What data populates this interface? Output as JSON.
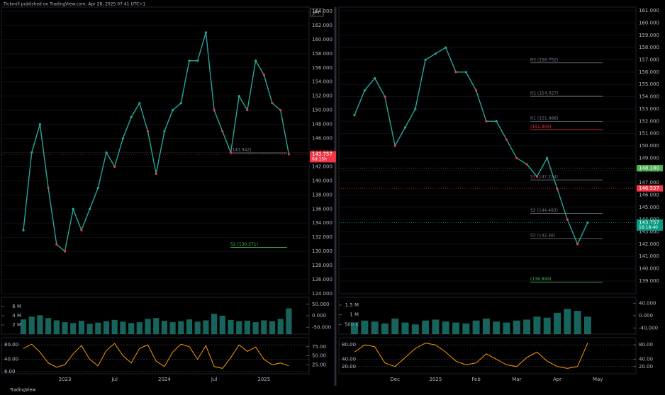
{
  "header": {
    "text": "Tickmill published on TradingView.com, Apr 28, 2025 07:41 UTC+1"
  },
  "footer": {
    "text": "TradingView"
  },
  "chart_data": [
    {
      "type": "line",
      "currency": "JPY",
      "categories": [
        null,
        null,
        null,
        null,
        null,
        "2023",
        null,
        null,
        null,
        null,
        null,
        "Jul",
        null,
        null,
        null,
        null,
        null,
        "2024",
        null,
        null,
        null,
        null,
        null,
        "Jul",
        null,
        null,
        null,
        null,
        null,
        "2025",
        null,
        null,
        null
      ],
      "values": [
        133,
        144,
        148,
        139,
        131,
        130,
        136,
        133,
        136,
        139,
        144,
        142,
        146,
        149,
        151,
        147,
        141,
        147,
        150,
        151,
        157,
        157,
        161,
        150,
        147,
        144,
        152,
        150,
        157,
        155,
        151,
        150,
        143.757
      ],
      "color": "#26a69a",
      "ylim": [
        124,
        164.6
      ],
      "yticks": [
        {
          "value": 164,
          "label": "164.000"
        },
        {
          "value": 162,
          "label": "162.000"
        },
        {
          "value": 160,
          "label": "160.000"
        },
        {
          "value": 158,
          "label": "158.000"
        },
        {
          "value": 156,
          "label": "156.000"
        },
        {
          "value": 154,
          "label": "154.000"
        },
        {
          "value": 152,
          "label": "152.000"
        },
        {
          "value": 150,
          "label": "150.000"
        },
        {
          "value": 148,
          "label": "148.000"
        },
        {
          "value": 146,
          "label": "146.000"
        },
        {
          "value": 144,
          "label": "144.000"
        },
        {
          "value": 142,
          "label": "142.000"
        },
        {
          "value": 140,
          "label": "140.000"
        },
        {
          "value": 138,
          "label": "138.000"
        },
        {
          "value": 136,
          "label": "136.000"
        },
        {
          "value": 134,
          "label": "134.000"
        },
        {
          "value": 132,
          "label": "132.000"
        },
        {
          "value": 130,
          "label": "130.000"
        },
        {
          "value": 128,
          "label": "128.000"
        },
        {
          "value": 126,
          "label": "126.000"
        },
        {
          "value": 124,
          "label": "124.000"
        }
      ],
      "price_tags": [
        {
          "value": 143.757,
          "label": "143.757",
          "color": "#f23645",
          "countdown": "6d 15h"
        }
      ],
      "levels": [
        {
          "value": 143.942,
          "label": "(143.942)",
          "color": "#787b86"
        },
        {
          "value": 130.571,
          "label": "S2 (130.571)",
          "color": "#4caf50"
        }
      ],
      "volume": {
        "values": [
          3200000,
          3800000,
          4100000,
          3500000,
          3000000,
          2600000,
          2400000,
          2900000,
          2200000,
          2500000,
          2800000,
          3100000,
          2700000,
          2400000,
          2600000,
          3300000,
          3500000,
          2900000,
          2600000,
          2800000,
          3200000,
          2700000,
          3000000,
          4400000,
          4000000,
          3100000,
          2800000,
          2900000,
          2600000,
          3000000,
          2800000,
          3300000,
          5600000
        ],
        "color": "#26a69a",
        "ylim": [
          0,
          8000000
        ],
        "yticks": [
          {
            "value": 6000000,
            "label": "6 M"
          },
          {
            "value": 4000000,
            "label": "4 M"
          },
          {
            "value": 2000000,
            "label": "2 M"
          }
        ],
        "y2lim": [
          -80,
          80
        ],
        "y2ticks": [
          {
            "value": 50,
            "label": "50.000"
          },
          {
            "value": 0,
            "label": "0.000"
          },
          {
            "value": -50,
            "label": "-50.000"
          }
        ]
      },
      "oscillator": {
        "values": [
          70,
          82,
          60,
          30,
          18,
          25,
          55,
          78,
          40,
          22,
          65,
          84,
          50,
          30,
          70,
          80,
          35,
          20,
          60,
          82,
          75,
          40,
          78,
          20,
          15,
          45,
          80,
          62,
          74,
          40,
          25,
          30,
          22
        ],
        "color": "#ff9800",
        "ylim": [
          0,
          100
        ],
        "yticks": [
          {
            "value": 80,
            "label": "80.00"
          },
          {
            "value": 40,
            "label": "40.00"
          },
          {
            "value": 6,
            "label": "6.00"
          }
        ],
        "y2ticks": [
          {
            "value": 75,
            "label": "75.00"
          },
          {
            "value": 50,
            "label": "50.00"
          },
          {
            "value": 25,
            "label": "25.00"
          }
        ]
      }
    },
    {
      "type": "line",
      "categories": [
        null,
        null,
        null,
        null,
        "Dec",
        null,
        null,
        null,
        "2025",
        null,
        null,
        null,
        "Feb",
        null,
        null,
        null,
        "Mar",
        null,
        null,
        null,
        "Apr",
        null,
        null,
        null,
        "May"
      ],
      "values": [
        152.5,
        154.5,
        155.5,
        154,
        150,
        151.5,
        153,
        157,
        157.5,
        158,
        156,
        156,
        154.5,
        152,
        152,
        150.5,
        149,
        148.5,
        147.5,
        149,
        146.5,
        144,
        142,
        143.757,
        null
      ],
      "color": "#26a69a",
      "ylim": [
        137.96,
        161.29
      ],
      "yticks": [
        {
          "value": 161,
          "label": "161.000"
        },
        {
          "value": 160,
          "label": "160.000"
        },
        {
          "value": 159,
          "label": "159.000"
        },
        {
          "value": 158,
          "label": "158.000"
        },
        {
          "value": 157,
          "label": "157.000"
        },
        {
          "value": 156,
          "label": "156.000"
        },
        {
          "value": 155,
          "label": "155.000"
        },
        {
          "value": 154,
          "label": "154.000"
        },
        {
          "value": 153,
          "label": "153.000"
        },
        {
          "value": 152,
          "label": "152.000"
        },
        {
          "value": 151,
          "label": "151.000"
        },
        {
          "value": 150,
          "label": "150.000"
        },
        {
          "value": 149,
          "label": "149.000"
        },
        {
          "value": 148,
          "label": "148.000"
        },
        {
          "value": 147,
          "label": "147.000"
        },
        {
          "value": 146,
          "label": "146.000"
        },
        {
          "value": 145,
          "label": "145.000"
        },
        {
          "value": 144,
          "label": "144.000"
        },
        {
          "value": 143,
          "label": "143.000"
        },
        {
          "value": 142,
          "label": "142.000"
        },
        {
          "value": 141,
          "label": "141.000"
        },
        {
          "value": 140,
          "label": "140.000"
        },
        {
          "value": 139,
          "label": "139.000"
        }
      ],
      "price_tags": [
        {
          "value": 148.18,
          "label": "148.180",
          "color": "#4caf50"
        },
        {
          "value": 146.537,
          "label": "146.537",
          "color": "#f23645"
        },
        {
          "value": 143.757,
          "label": "143.757",
          "color": "#089981",
          "countdown": "16:18:40"
        }
      ],
      "levels": [
        {
          "value": 156.752,
          "label": "R3 (156.752)",
          "color": "#787b86"
        },
        {
          "value": 154.027,
          "label": "R2 (154.027)",
          "color": "#787b86"
        },
        {
          "value": 151.988,
          "label": "R1 (151.988)",
          "color": "#787b86"
        },
        {
          "value": 151.305,
          "label": "(151.305)",
          "color": "#f23645"
        },
        {
          "value": 147.224,
          "label": "S1 (147.224)",
          "color": "#787b86"
        },
        {
          "value": 144.493,
          "label": "S2 (144.493)",
          "color": "#787b86"
        },
        {
          "value": 142.46,
          "label": "S3 (142.46)",
          "color": "#787b86"
        },
        {
          "value": 138.899,
          "label": "(138.899)",
          "color": "#4caf50"
        }
      ],
      "volume": {
        "values": [
          600000,
          700000,
          650000,
          550000,
          800000,
          600000,
          500000,
          700000,
          750000,
          650000,
          600000,
          550000,
          700000,
          800000,
          650000,
          600000,
          700000,
          750000,
          900000,
          850000,
          1100000,
          1300000,
          1200000,
          900000,
          null
        ],
        "color": "#26a69a",
        "ylim": [
          0,
          1900000
        ],
        "yticks": [
          {
            "value": 1500000,
            "label": "1.5 M"
          },
          {
            "value": 1000000,
            "label": "1 M"
          },
          {
            "value": 500000,
            "label": "500 K"
          }
        ],
        "y2lim": [
          -60,
          60
        ],
        "y2ticks": [
          {
            "value": 40,
            "label": "40.000"
          },
          {
            "value": 0,
            "label": "0.000"
          },
          {
            "value": -40,
            "label": "-40.000"
          }
        ]
      },
      "oscillator": {
        "values": [
          60,
          80,
          75,
          30,
          20,
          45,
          70,
          85,
          80,
          60,
          35,
          25,
          30,
          55,
          40,
          25,
          20,
          45,
          60,
          35,
          20,
          15,
          20,
          85,
          null
        ],
        "color": "#ff9800",
        "ylim": [
          0,
          100
        ],
        "yticks": [
          {
            "value": 80,
            "label": "80.00"
          },
          {
            "value": 40,
            "label": "40.00"
          },
          {
            "value": 20,
            "label": "20.00"
          }
        ],
        "y2ticks": [
          {
            "value": 80,
            "label": "80.00"
          },
          {
            "value": 40,
            "label": "40.00"
          },
          {
            "value": 20,
            "label": "20.00"
          }
        ]
      }
    }
  ]
}
